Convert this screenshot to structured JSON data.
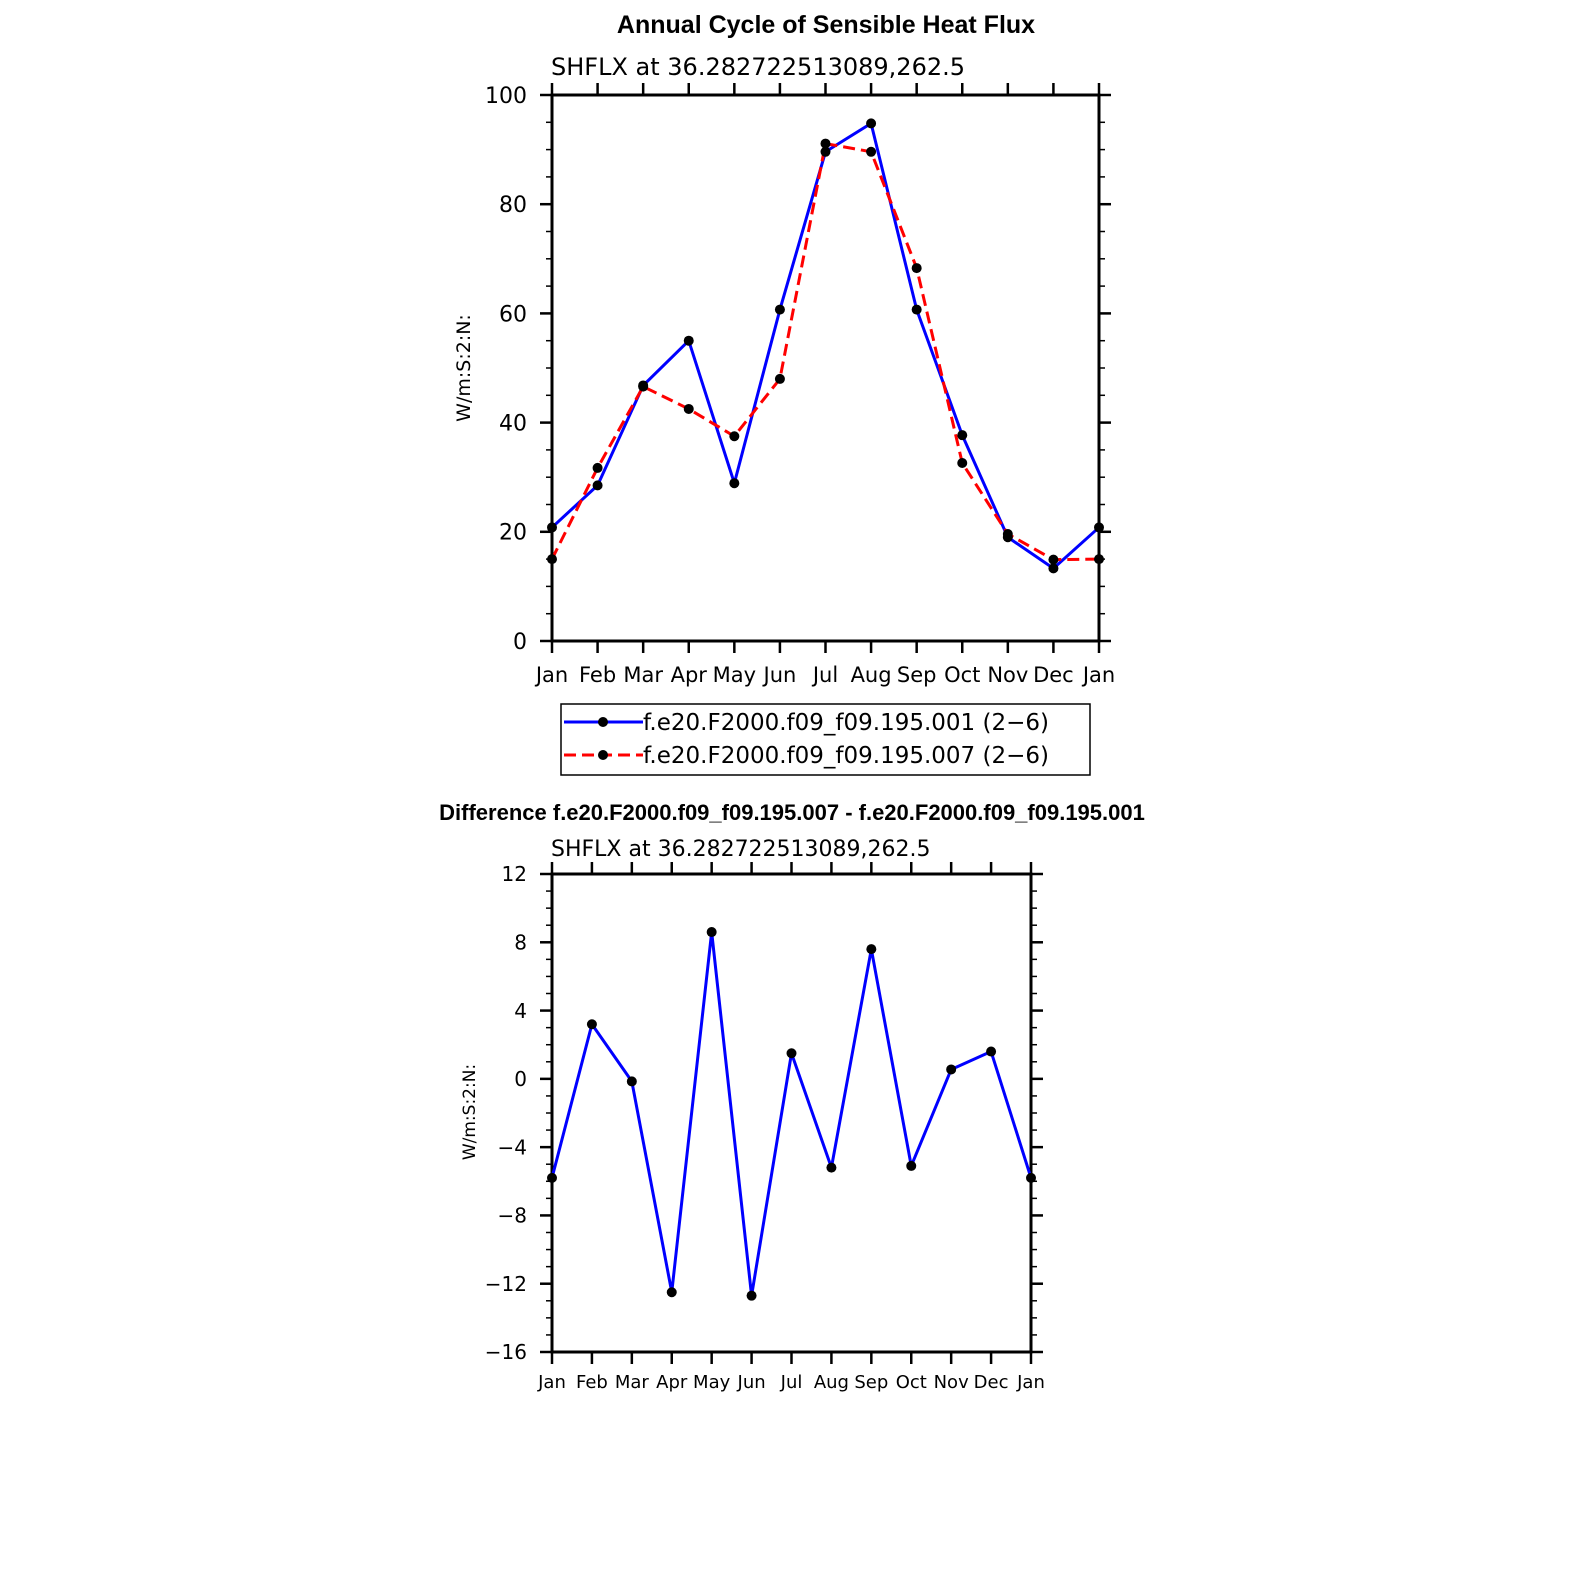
{
  "chart_data": [
    {
      "type": "line",
      "title": "Annual Cycle of Sensible Heat Flux",
      "subtitle": "SHFLX at 36.282722513089,262.5",
      "ylabel": "W/m:S:2:N:",
      "xlabel": "",
      "categories": [
        "Jan",
        "Feb",
        "Mar",
        "Apr",
        "May",
        "Jun",
        "Jul",
        "Aug",
        "Sep",
        "Oct",
        "Nov",
        "Dec",
        "Jan"
      ],
      "ylim": [
        0,
        100
      ],
      "yticks": [
        "0",
        "20",
        "40",
        "60",
        "80",
        "100"
      ],
      "grid": false,
      "legend_position": "bottom",
      "series": [
        {
          "name": "f.e20.F2000.f09_f09.195.001 (2−6)",
          "color": "#0000ff",
          "dash": "solid",
          "values": [
            20.8,
            28.5,
            46.8,
            55.0,
            28.9,
            60.7,
            89.6,
            94.8,
            60.7,
            37.7,
            19.0,
            13.3,
            20.8
          ]
        },
        {
          "name": "f.e20.F2000.f09_f09.195.007 (2−6)",
          "color": "#ff0000",
          "dash": "dashed",
          "values": [
            15.0,
            31.7,
            46.6,
            42.5,
            37.5,
            48.0,
            91.1,
            89.6,
            68.3,
            32.6,
            19.6,
            14.9,
            15.0
          ]
        }
      ]
    },
    {
      "type": "line",
      "title": "Difference f.e20.F2000.f09_f09.195.007 - f.e20.F2000.f09_f09.195.001",
      "subtitle": "SHFLX at 36.282722513089,262.5",
      "ylabel": "W/m:S:2:N:",
      "xlabel": "",
      "categories": [
        "Jan",
        "Feb",
        "Mar",
        "Apr",
        "May",
        "Jun",
        "Jul",
        "Aug",
        "Sep",
        "Oct",
        "Nov",
        "Dec",
        "Jan"
      ],
      "ylim": [
        -16,
        12
      ],
      "yticks": [
        "−16",
        "−12",
        "−8",
        "−4",
        "0",
        "4",
        "8",
        "12"
      ],
      "grid": false,
      "series": [
        {
          "color": "#0000ff",
          "dash": "solid",
          "values": [
            -5.8,
            3.2,
            -0.15,
            -12.5,
            8.6,
            -12.7,
            1.5,
            -5.2,
            7.6,
            -5.1,
            0.55,
            1.6,
            -5.8
          ]
        }
      ]
    }
  ]
}
